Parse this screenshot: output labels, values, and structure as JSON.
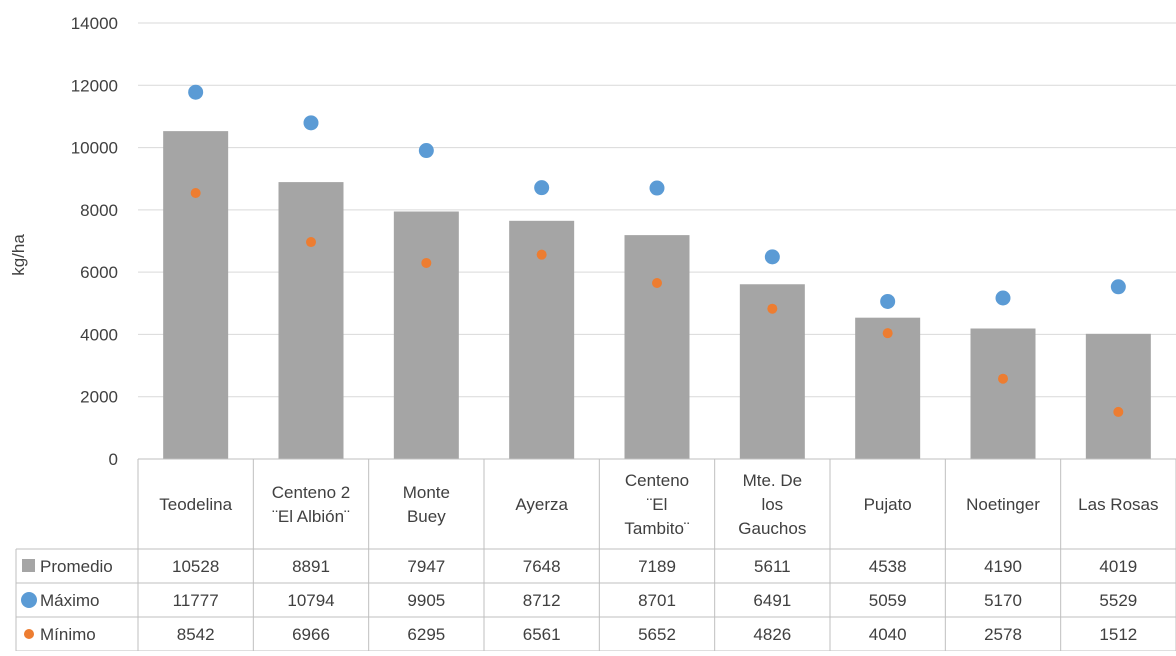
{
  "chart_data": {
    "type": "bar",
    "title": "",
    "ylabel": "kg/ha",
    "ylim": [
      0,
      14000
    ],
    "yticks": [
      0,
      2000,
      4000,
      6000,
      8000,
      10000,
      12000,
      14000
    ],
    "grid": true,
    "legend": "data-table",
    "categories": [
      [
        "Teodelina"
      ],
      [
        "Centeno 2",
        "¨El Albión¨"
      ],
      [
        "Monte",
        "Buey"
      ],
      [
        "Ayerza"
      ],
      [
        "Centeno",
        "¨El",
        "Tambito¨"
      ],
      [
        "Mte. De",
        "los",
        "Gauchos"
      ],
      [
        "Pujato"
      ],
      [
        "Noetinger"
      ],
      [
        "Las Rosas"
      ]
    ],
    "series": [
      {
        "name": "Promedio",
        "kind": "bar",
        "color": "#a5a5a5",
        "values": [
          10528,
          8891,
          7947,
          7648,
          7189,
          5611,
          4538,
          4190,
          4019
        ]
      },
      {
        "name": "Máximo",
        "kind": "marker",
        "color": "#5b9bd5",
        "values": [
          11777,
          10794,
          9905,
          8712,
          8701,
          6491,
          5059,
          5170,
          5529
        ]
      },
      {
        "name": "Mínimo",
        "kind": "marker",
        "color": "#ed7d31",
        "values": [
          8542,
          6966,
          6295,
          6561,
          5652,
          4826,
          4040,
          2578,
          1512
        ]
      }
    ]
  }
}
